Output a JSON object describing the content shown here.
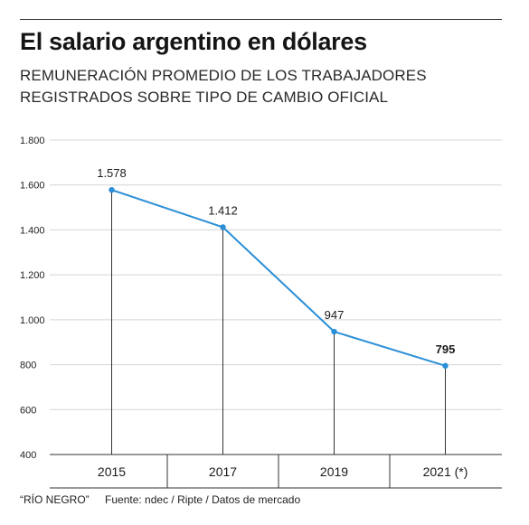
{
  "header": {
    "title": "El salario argentino en dólares",
    "subtitle_line1": "REMUNERACIÓN PROMEDIO DE LOS TRABAJADORES",
    "subtitle_line2": "REGISTRADOS SOBRE TIPO DE CAMBIO OFICIAL"
  },
  "footer": {
    "credit": "“RÍO NEGRO”",
    "source": "Fuente: ndec / Ripte / Datos de mercado"
  },
  "chart_data": {
    "type": "line",
    "categories": [
      "2015",
      "2017",
      "2019",
      "2021 (*)"
    ],
    "values": [
      1578,
      1412,
      947,
      795
    ],
    "data_labels": [
      "1.578",
      "1.412",
      "947",
      "795"
    ],
    "ylim": [
      400,
      1800
    ],
    "yticks": [
      400,
      600,
      800,
      1000,
      1200,
      1400,
      1600,
      1800
    ],
    "ytick_labels": [
      "400",
      "600",
      "800",
      "1.000",
      "1.200",
      "1.400",
      "1.600",
      "1.800"
    ],
    "grid": true,
    "line_color": "#2b8fd6",
    "grid_color": "#d4d4d4",
    "axis_color": "#333333"
  }
}
